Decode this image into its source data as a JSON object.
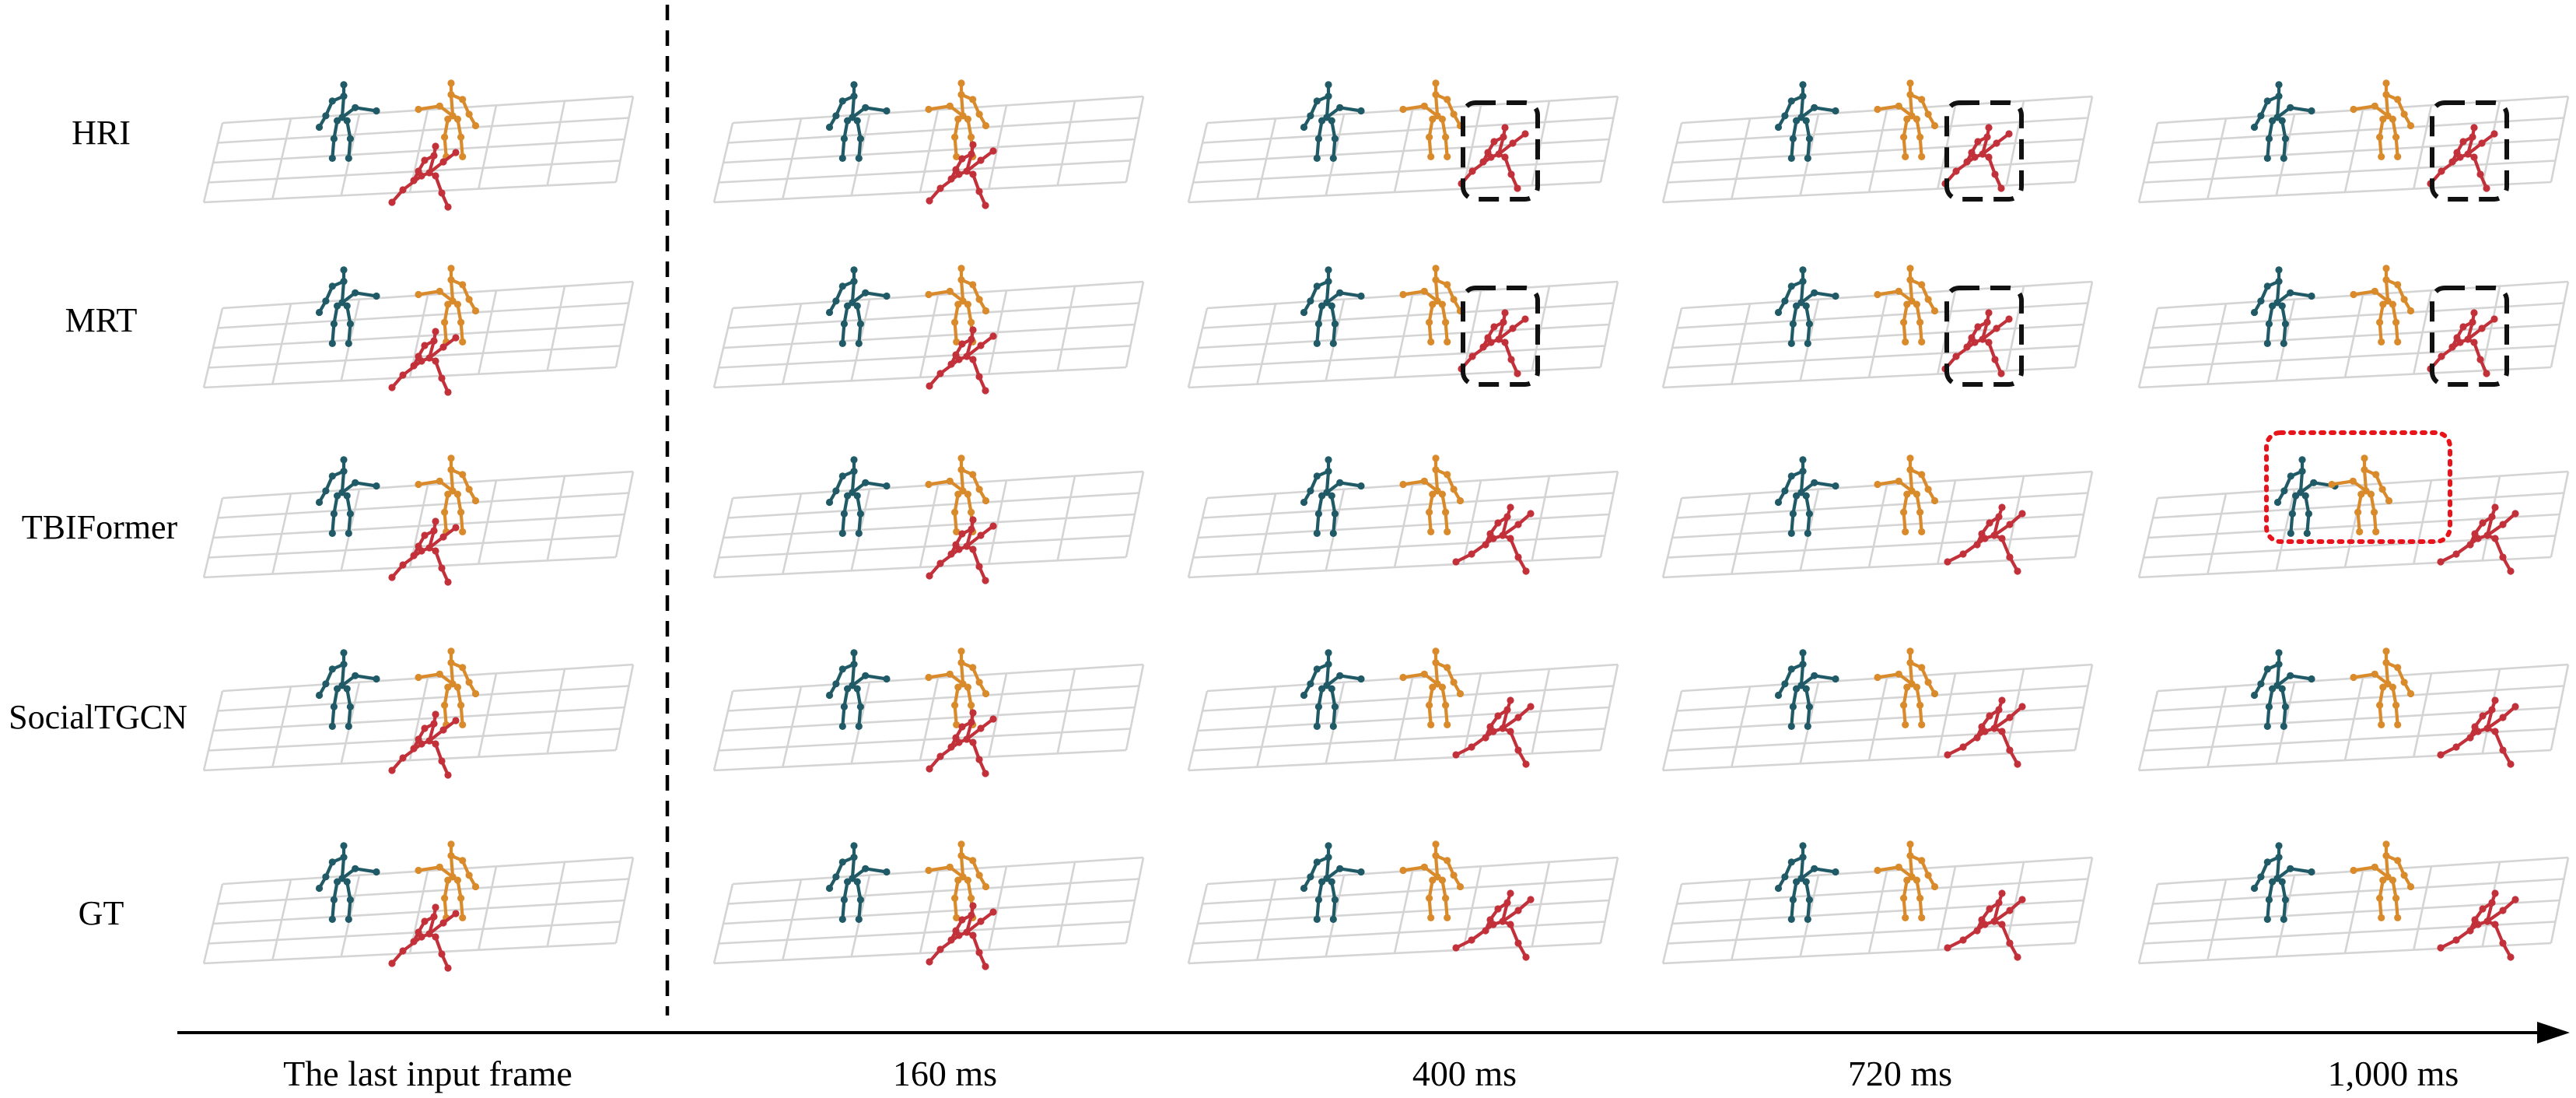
{
  "colors": {
    "person_a": "#1f5a66",
    "person_b": "#d98a2b",
    "person_c": "#c2303a",
    "highlight_box": "#111111",
    "collision_box": "#e8141c",
    "grid": "#d4d4d4"
  },
  "rows": [
    {
      "label": "HRI",
      "markers": [
        "",
        "",
        "dashed-box",
        "dashed-box",
        "dashed-box"
      ]
    },
    {
      "label": "MRT",
      "markers": [
        "",
        "",
        "dashed-box",
        "dashed-box",
        "dashed-box"
      ]
    },
    {
      "label": "TBIFormer",
      "markers": [
        "",
        "",
        "",
        "",
        "dotted-red-box"
      ]
    },
    {
      "label": "SocialTGCN",
      "markers": [
        "",
        "",
        "",
        "",
        ""
      ]
    },
    {
      "label": "GT",
      "markers": [
        "",
        "",
        "",
        "",
        ""
      ]
    }
  ],
  "timeline": [
    "The last input frame",
    "160 ms",
    "400 ms",
    "720 ms",
    "1,000 ms"
  ]
}
